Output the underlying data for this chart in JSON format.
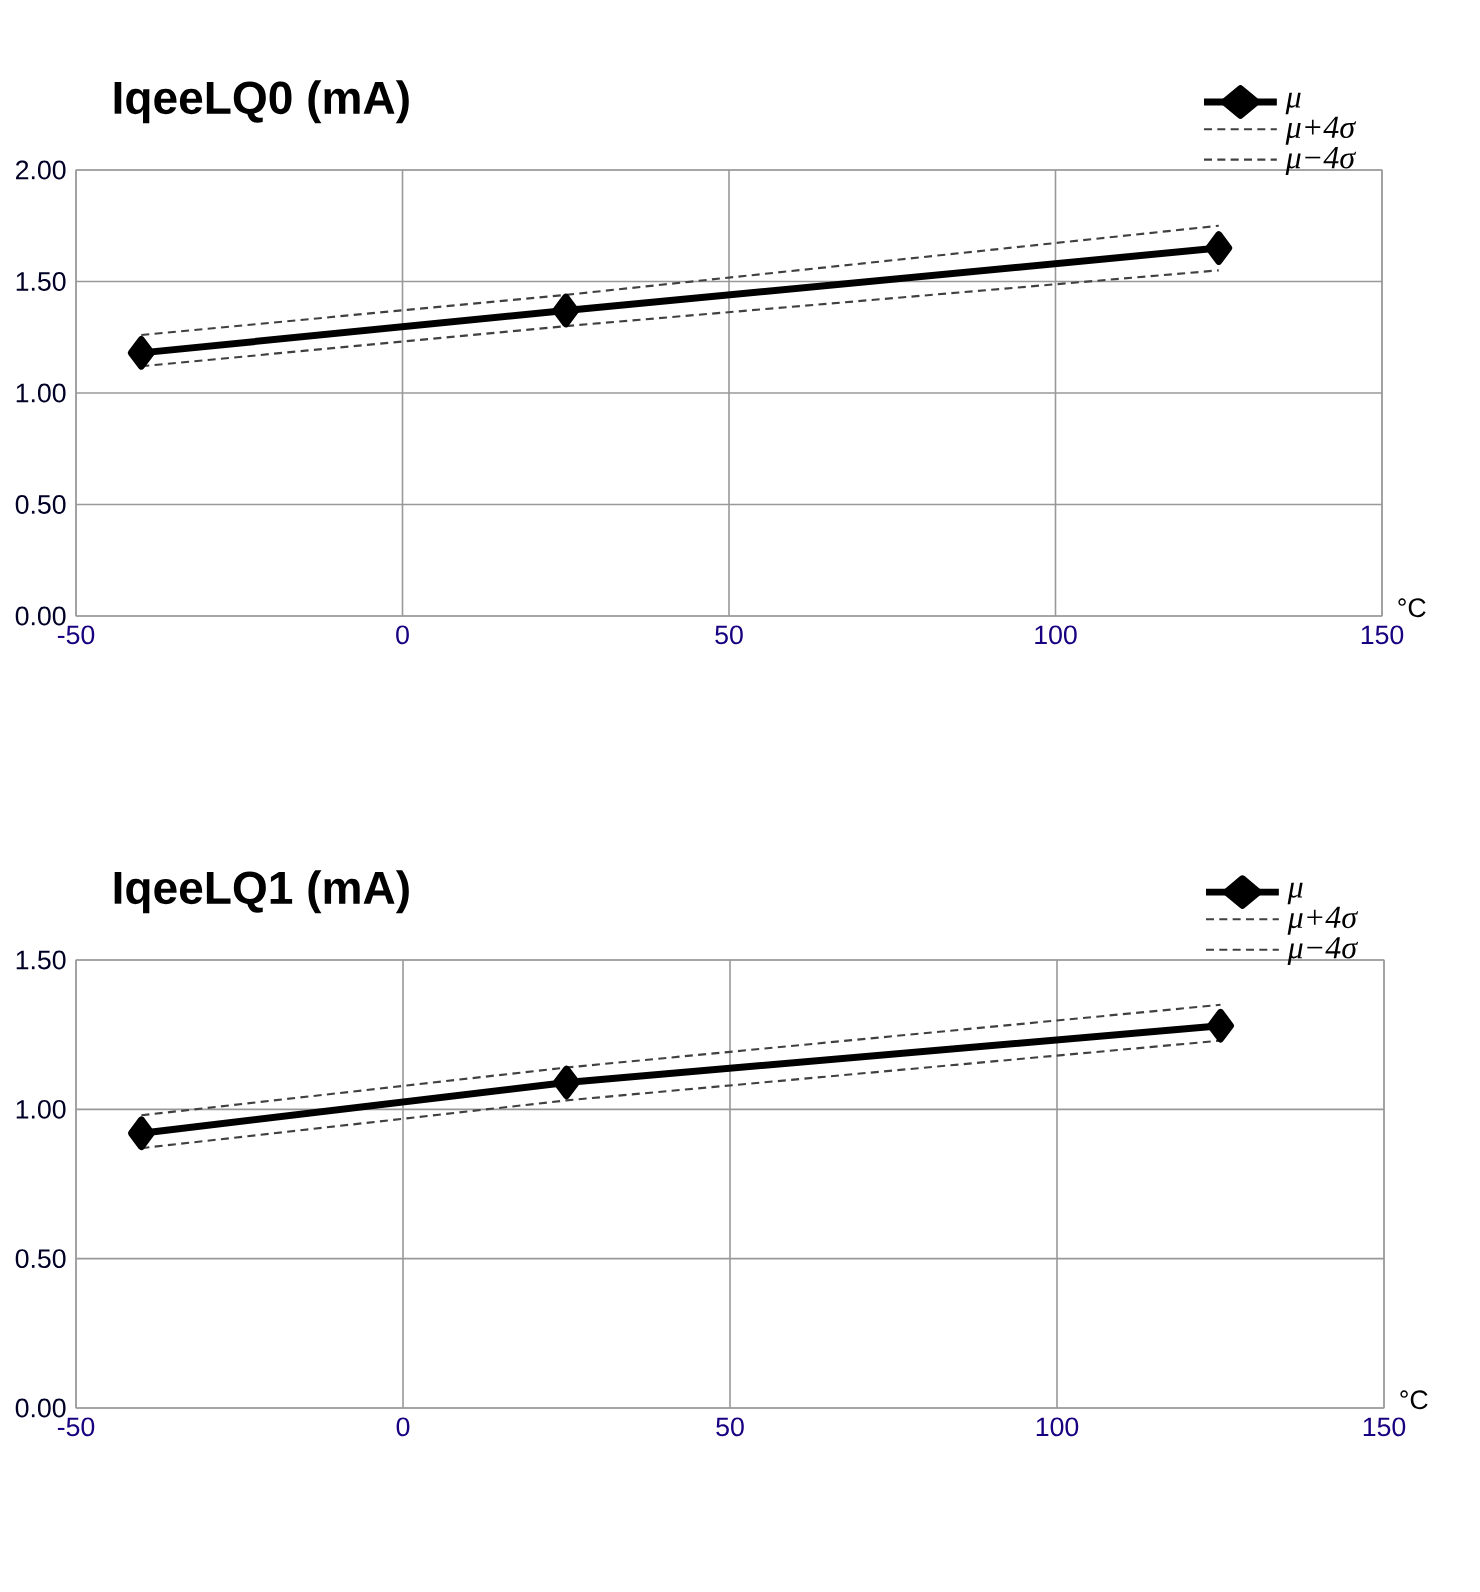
{
  "chart_data": [
    {
      "type": "line",
      "title": "IqeeLQ0 (mA)",
      "xlabel": "°C",
      "x": [
        -40,
        25,
        125
      ],
      "xlim": [
        -50,
        150
      ],
      "xticks": [
        -50,
        0,
        50,
        100,
        150
      ],
      "ylim": [
        0,
        2
      ],
      "yticks": [
        {
          "value": 0,
          "label": "0.00"
        },
        {
          "value": 0.5,
          "label": "0.50"
        },
        {
          "value": 1,
          "label": "1.00"
        },
        {
          "value": 1.5,
          "label": "1.50"
        },
        {
          "value": 2,
          "label": "2.00"
        }
      ],
      "grid": true,
      "legend": "top right",
      "series": [
        {
          "name": "μ",
          "color": "#000000",
          "marker": "diamond",
          "line_style": "solid",
          "values": [
            1.18,
            1.37,
            1.65
          ]
        },
        {
          "name": "μ+4σ",
          "color": "#404040",
          "marker": "none",
          "line_style": "dashed",
          "values": [
            1.26,
            1.44,
            1.75
          ]
        },
        {
          "name": "μ−4σ",
          "color": "#404040",
          "marker": "none",
          "line_style": "dashed",
          "values": [
            1.12,
            1.3,
            1.55
          ]
        }
      ]
    },
    {
      "type": "line",
      "title": "IqeeLQ1 (mA)",
      "xlabel": "°C",
      "x": [
        -40,
        25,
        125
      ],
      "xlim": [
        -50,
        150
      ],
      "xticks": [
        -50,
        0,
        50,
        100,
        150
      ],
      "ylim": [
        0,
        1.5
      ],
      "yticks": [
        {
          "value": 0,
          "label": "0.00"
        },
        {
          "value": 0.5,
          "label": "0.50"
        },
        {
          "value": 1,
          "label": "1.00"
        },
        {
          "value": 1.5,
          "label": "1.50"
        }
      ],
      "grid": true,
      "legend": "top right",
      "series": [
        {
          "name": "μ",
          "color": "#000000",
          "marker": "diamond",
          "line_style": "solid",
          "values": [
            0.92,
            1.09,
            1.28
          ]
        },
        {
          "name": "μ+4σ",
          "color": "#404040",
          "marker": "none",
          "line_style": "dashed",
          "values": [
            0.98,
            1.14,
            1.35
          ]
        },
        {
          "name": "μ−4σ",
          "color": "#404040",
          "marker": "none",
          "line_style": "dashed",
          "values": [
            0.87,
            1.03,
            1.23
          ]
        }
      ]
    }
  ]
}
